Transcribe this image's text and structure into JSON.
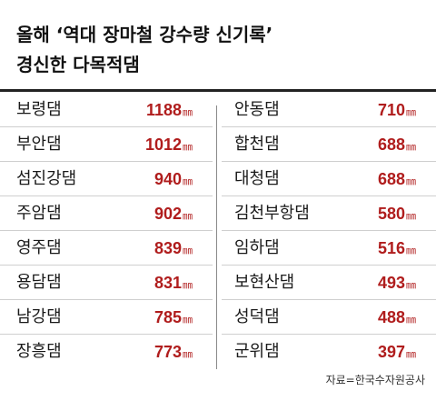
{
  "title": {
    "line1": "올해 ‘역대 장마철 강수량 신기록’",
    "line2": "경신한 다목적댐"
  },
  "source": "자료=한국수자원공사",
  "chart_data": {
    "type": "table",
    "title": "올해 ‘역대 장마철 강수량 신기록’ 경신한 다목적댐",
    "unit": "㎜",
    "left": [
      {
        "name": "보령댐",
        "value": 1188
      },
      {
        "name": "부안댐",
        "value": 1012
      },
      {
        "name": "섬진강댐",
        "value": 940
      },
      {
        "name": "주암댐",
        "value": 902
      },
      {
        "name": "영주댐",
        "value": 839
      },
      {
        "name": "용담댐",
        "value": 831
      },
      {
        "name": "남강댐",
        "value": 785
      },
      {
        "name": "장흥댐",
        "value": 773
      }
    ],
    "right": [
      {
        "name": "안동댐",
        "value": 710
      },
      {
        "name": "합천댐",
        "value": 688
      },
      {
        "name": "대청댐",
        "value": 688
      },
      {
        "name": "김천부항댐",
        "value": 580
      },
      {
        "name": "임하댐",
        "value": 516
      },
      {
        "name": "보현산댐",
        "value": 493
      },
      {
        "name": "성덕댐",
        "value": 488
      },
      {
        "name": "군위댐",
        "value": 397
      }
    ],
    "value_color": "#b01d1d"
  }
}
